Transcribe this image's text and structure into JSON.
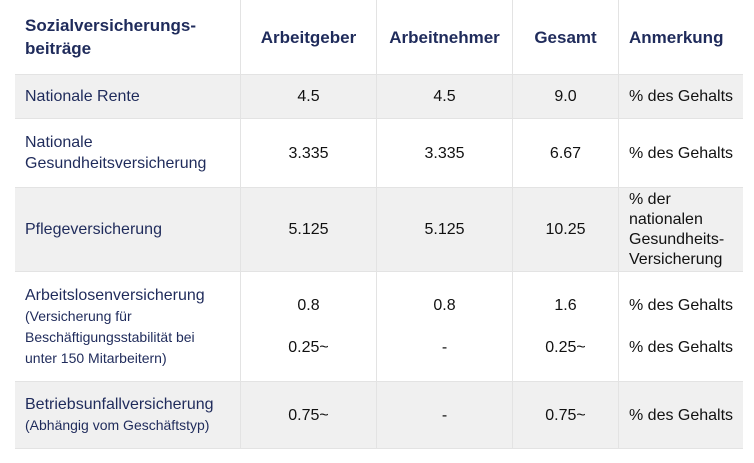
{
  "headers": {
    "type_line1": "Sozialversicherungs-",
    "type_line2": "beiträge",
    "employer": "Arbeitgeber",
    "employee": "Arbeitnehmer",
    "total": "Gesamt",
    "note": "Anmerkung"
  },
  "rows": [
    {
      "name": "Nationale Rente",
      "employer": "4.5",
      "employee": "4.5",
      "total": "9.0",
      "note": "% des Gehalts"
    },
    {
      "name_line1": "Nationale",
      "name_line2": "Gesundheitsversicherung",
      "employer": "3.335",
      "employee": "3.335",
      "total": "6.67",
      "note": "% des Gehalts"
    },
    {
      "name": "Pflegeversicherung",
      "employer": "5.125",
      "employee": "5.125",
      "total": "10.25",
      "note_line1": "% der",
      "note_line2": "nationalen",
      "note_line3": "Gesundheits-",
      "note_line4": "Versicherung"
    },
    {
      "name": "Arbeitslosenversicherung",
      "sub_line1": "(Versicherung für",
      "sub_line2": "Beschäftigungsstabilität bei",
      "sub_line3": "unter 150 Mitarbeitern)",
      "employer_1": "0.8",
      "employer_2": "0.25~",
      "employee_1": "0.8",
      "employee_2": "-",
      "total_1": "1.6",
      "total_2": "0.25~",
      "note_1": "% des Gehalts",
      "note_2": "% des Gehalts"
    },
    {
      "name": "Betriebsunfallversicherung",
      "sub": "(Abhängig vom Geschäftstyp)",
      "employer": "0.75~",
      "employee": "-",
      "total": "0.75~",
      "note": "% des Gehalts"
    }
  ]
}
